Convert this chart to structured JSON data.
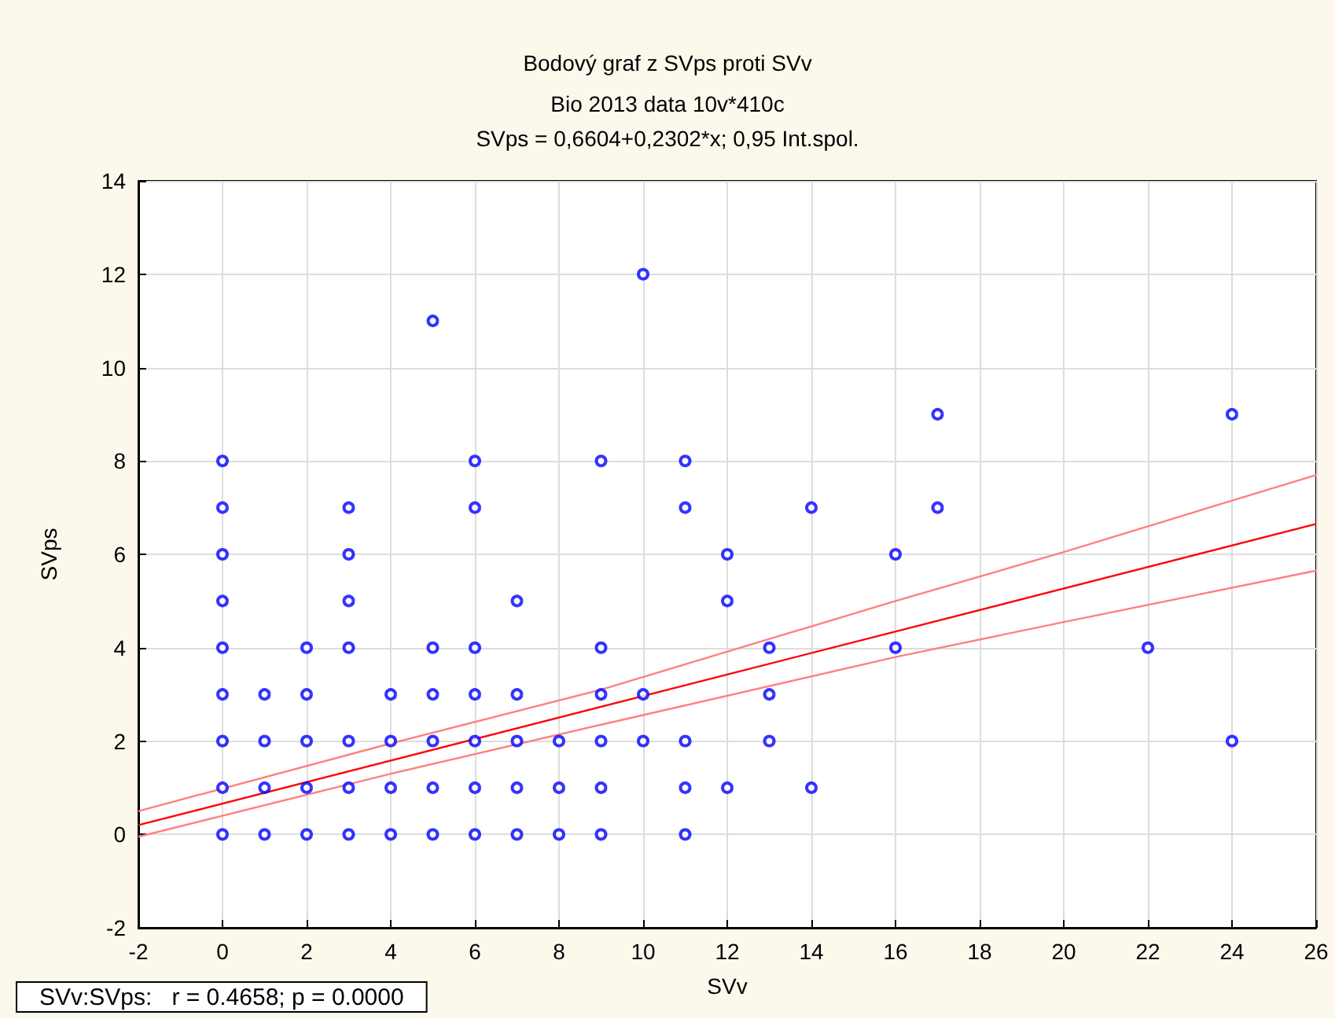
{
  "chart_data": {
    "type": "scatter",
    "title": "Bodový graf z SVps proti SVv",
    "subtitle": "Bio 2013 data 10v*410c\nSVps = 0,6604+0,2302*x; 0,95 Int.spol.",
    "xlabel": "SVv",
    "ylabel": "SVps",
    "series": [
      {
        "color": "#0000ff",
        "marker": "circle",
        "x": [
          0,
          0,
          0,
          0,
          0,
          0,
          0,
          0,
          0,
          1,
          1,
          1,
          1,
          2,
          2,
          2,
          2,
          2,
          3,
          3,
          3,
          3,
          3,
          3,
          3,
          4,
          4,
          4,
          4,
          5,
          5,
          5,
          5,
          5,
          5,
          6,
          6,
          6,
          6,
          6,
          6,
          6,
          7,
          7,
          7,
          7,
          7,
          8,
          8,
          8,
          9,
          9,
          9,
          9,
          9,
          9,
          10,
          10,
          10,
          11,
          11,
          11,
          11,
          11,
          12,
          12,
          12,
          13,
          13,
          13,
          14,
          14,
          16,
          16,
          17,
          17,
          22,
          24,
          24
        ],
        "values": [
          0,
          1,
          2,
          3,
          4,
          5,
          6,
          7,
          8,
          0,
          1,
          2,
          3,
          0,
          1,
          2,
          3,
          4,
          0,
          1,
          2,
          4,
          5,
          6,
          7,
          0,
          1,
          2,
          3,
          0,
          1,
          2,
          3,
          4,
          11,
          0,
          1,
          2,
          3,
          4,
          7,
          8,
          0,
          1,
          2,
          3,
          5,
          0,
          1,
          2,
          0,
          1,
          2,
          3,
          4,
          8,
          2,
          3,
          12,
          0,
          1,
          2,
          7,
          8,
          1,
          5,
          6,
          2,
          3,
          4,
          1,
          7,
          4,
          6,
          7,
          9,
          4,
          2,
          9
        ]
      },
      {
        "type": "line",
        "color": "#ff0000",
        "marker": "none",
        "line_style": "solid",
        "x": [
          -2,
          26
        ],
        "values": [
          0.2,
          6.65
        ]
      },
      {
        "type": "line",
        "color": "#ff8080",
        "marker": "none",
        "line_style": "solid",
        "x": [
          -2,
          4,
          9,
          16,
          20,
          26
        ],
        "values": [
          0.5,
          1.95,
          3.1,
          5.0,
          6.05,
          7.7
        ]
      },
      {
        "type": "line",
        "color": "#ff8080",
        "marker": "none",
        "line_style": "solid",
        "x": [
          -2,
          4,
          9,
          16,
          20,
          26
        ],
        "values": [
          -0.05,
          1.3,
          2.35,
          3.8,
          4.55,
          5.65
        ]
      }
    ],
    "xlim": [
      -2,
      26
    ],
    "xticks": [
      -2,
      0,
      2,
      4,
      6,
      8,
      10,
      12,
      14,
      16,
      18,
      20,
      22,
      24,
      26
    ],
    "ylim": [
      -2,
      14
    ],
    "yticks": [
      -2,
      0,
      2,
      4,
      6,
      8,
      10,
      12,
      14
    ],
    "grid": true,
    "annotations": [
      "SVv:SVps:   r = 0.4658; p = 0.0000"
    ]
  }
}
